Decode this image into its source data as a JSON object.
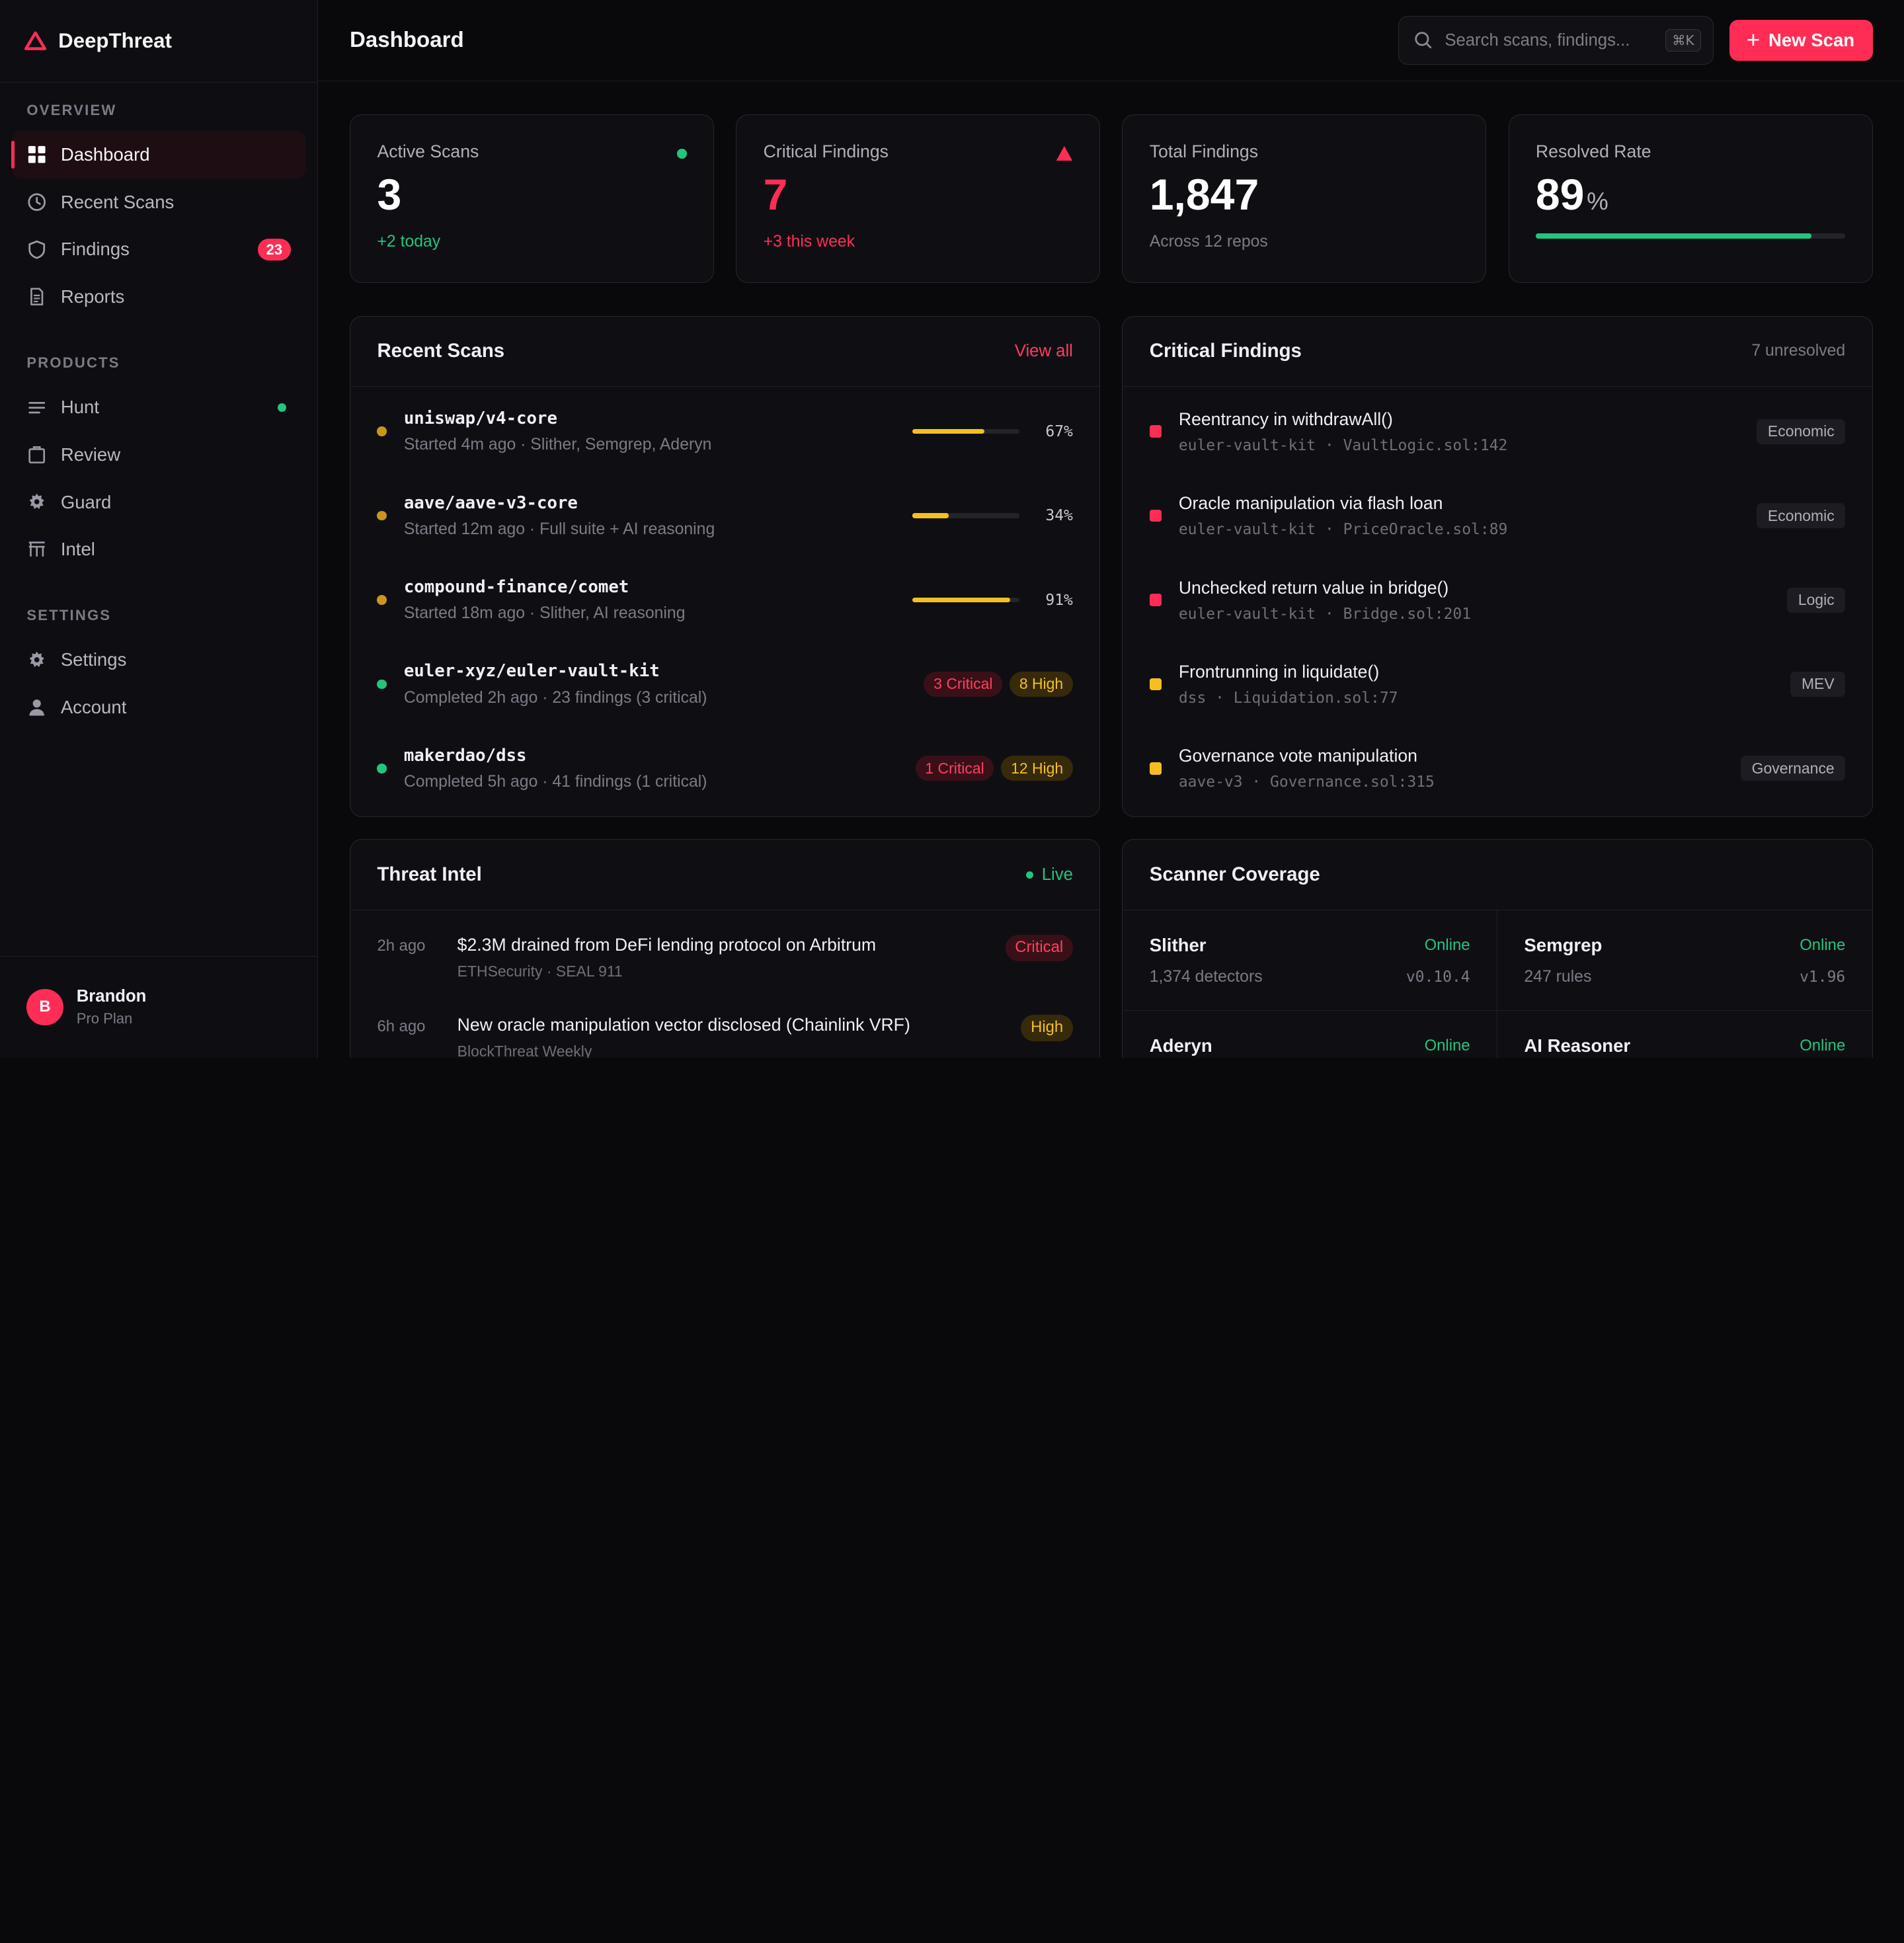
{
  "brand": {
    "name": "DeepThreat",
    "accent": "#ff2d55"
  },
  "sidebar": {
    "sections": [
      {
        "heading": "OVERVIEW",
        "items": [
          {
            "label": "Dashboard",
            "icon": "grid-icon",
            "active": true
          },
          {
            "label": "Recent Scans",
            "icon": "clock-icon"
          },
          {
            "label": "Findings",
            "icon": "shield-icon",
            "badge": "23"
          },
          {
            "label": "Reports",
            "icon": "document-icon"
          }
        ]
      },
      {
        "heading": "PRODUCTS",
        "items": [
          {
            "label": "Hunt",
            "icon": "lines-icon",
            "live": true
          },
          {
            "label": "Review",
            "icon": "clipboard-icon"
          },
          {
            "label": "Guard",
            "icon": "gear-icon"
          },
          {
            "label": "Intel",
            "icon": "table-icon"
          }
        ]
      },
      {
        "heading": "SETTINGS",
        "items": [
          {
            "label": "Settings",
            "icon": "gear-icon"
          },
          {
            "label": "Account",
            "icon": "user-icon"
          }
        ]
      }
    ],
    "user": {
      "initial": "B",
      "name": "Brandon",
      "plan": "Pro Plan"
    }
  },
  "header": {
    "title": "Dashboard",
    "search_placeholder": "Search scans, findings...",
    "search_shortcut": "⌘K",
    "new_scan_label": "New Scan"
  },
  "stats": {
    "active": {
      "label": "Active Scans",
      "value": "3",
      "sub": "+2 today"
    },
    "critical": {
      "label": "Critical Findings",
      "value": "7",
      "sub": "+3 this week"
    },
    "total": {
      "label": "Total Findings",
      "value": "1,847",
      "sub": "Across 12 repos"
    },
    "resolved": {
      "label": "Resolved Rate",
      "value": "89",
      "unit": "%",
      "progress": 0.89
    }
  },
  "recent_scans": {
    "title": "Recent Scans",
    "link": "View all",
    "rows": [
      {
        "name": "uniswap/v4-core",
        "meta": "Started 4m ago · Slither, Semgrep, Aderyn",
        "status": "running",
        "progress": 0.67,
        "pct": "67%"
      },
      {
        "name": "aave/aave-v3-core",
        "meta": "Started 12m ago · Full suite + AI reasoning",
        "status": "running",
        "progress": 0.34,
        "pct": "34%"
      },
      {
        "name": "compound-finance/comet",
        "meta": "Started 18m ago · Slither, AI reasoning",
        "status": "running",
        "progress": 0.91,
        "pct": "91%"
      },
      {
        "name": "euler-xyz/euler-vault-kit",
        "meta": "Completed 2h ago · 23 findings (3 critical)",
        "status": "done",
        "critical": "3 Critical",
        "high": "8 High"
      },
      {
        "name": "makerdao/dss",
        "meta": "Completed 5h ago · 41 findings (1 critical)",
        "status": "done",
        "critical": "1 Critical",
        "high": "12 High"
      }
    ]
  },
  "critical_findings": {
    "title": "Critical Findings",
    "count_label": "7 unresolved",
    "rows": [
      {
        "title": "Reentrancy in withdrawAll()",
        "repo": "euler-vault-kit",
        "file": "VaultLogic.sol:142",
        "tag": "Economic",
        "severity": "critical"
      },
      {
        "title": "Oracle manipulation via flash loan",
        "repo": "euler-vault-kit",
        "file": "PriceOracle.sol:89",
        "tag": "Economic",
        "severity": "critical"
      },
      {
        "title": "Unchecked return value in bridge()",
        "repo": "euler-vault-kit",
        "file": "Bridge.sol:201",
        "tag": "Logic",
        "severity": "critical"
      },
      {
        "title": "Frontrunning in liquidate()",
        "repo": "dss",
        "file": "Liquidation.sol:77",
        "tag": "MEV",
        "severity": "high"
      },
      {
        "title": "Governance vote manipulation",
        "repo": "aave-v3",
        "file": "Governance.sol:315",
        "tag": "Governance",
        "severity": "high"
      }
    ]
  },
  "threat_intel": {
    "title": "Threat Intel",
    "live_label": "Live",
    "rows": [
      {
        "time": "2h ago",
        "title": "$2.3M drained from DeFi lending protocol on Arbitrum",
        "source": "ETHSecurity · SEAL 911",
        "severity": "Critical"
      },
      {
        "time": "6h ago",
        "title": "New oracle manipulation vector disclosed (Chainlink VRF)",
        "source": "BlockThreat Weekly",
        "severity": "High"
      }
    ]
  },
  "scanner_coverage": {
    "title": "Scanner Coverage",
    "scanners": [
      {
        "name": "Slither",
        "status": "Online",
        "detail": "1,374 detectors",
        "version": "v0.10.4"
      },
      {
        "name": "Semgrep",
        "status": "Online",
        "detail": "247 rules",
        "version": "v1.96"
      },
      {
        "name": "Aderyn",
        "status": "Online",
        "detail": "",
        "version": ""
      },
      {
        "name": "AI Reasoner",
        "status": "Online",
        "detail": "",
        "version": ""
      }
    ]
  },
  "colors": {
    "critical": "#ff2d55",
    "high": "#f5bf22",
    "success": "#22c57c",
    "running": "#c9961d"
  }
}
